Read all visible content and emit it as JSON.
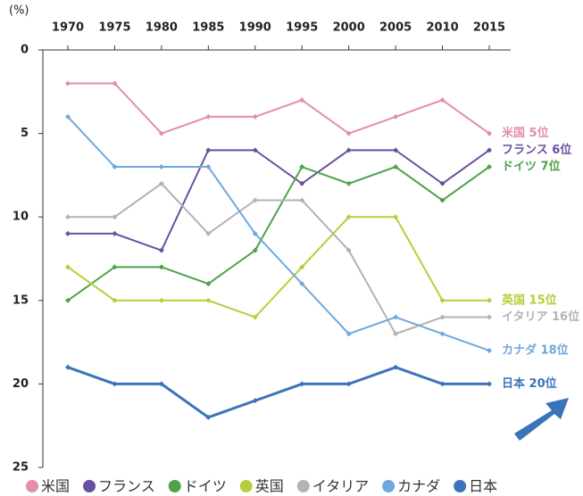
{
  "chart_data": {
    "type": "line",
    "y_label": "(%)",
    "categories": [
      "1970",
      "1975",
      "1980",
      "1985",
      "1990",
      "1995",
      "2000",
      "2005",
      "2010",
      "2015"
    ],
    "ylim": [
      0,
      25
    ],
    "yticks": [
      0,
      5,
      10,
      15,
      20,
      25
    ],
    "y_inverted": true,
    "series": [
      {
        "name": "米国",
        "color": "#e38fa8",
        "values": [
          2,
          2,
          5,
          4,
          4,
          3,
          5,
          4,
          3,
          5
        ],
        "end_label": "米国 5位"
      },
      {
        "name": "フランス",
        "color": "#6b4fa0",
        "values": [
          11,
          11,
          12,
          6,
          6,
          8,
          6,
          6,
          8,
          6
        ],
        "end_label": "フランス 6位"
      },
      {
        "name": "ドイツ",
        "color": "#4ea24a",
        "values": [
          15,
          13,
          13,
          14,
          12,
          7,
          8,
          7,
          9,
          7
        ],
        "end_label": "ドイツ 7位"
      },
      {
        "name": "英国",
        "color": "#b5cf3c",
        "values": [
          13,
          15,
          15,
          15,
          16,
          13,
          10,
          10,
          15,
          15
        ],
        "end_label": "英国 15位"
      },
      {
        "name": "イタリア",
        "color": "#b3b3b3",
        "values": [
          10,
          10,
          8,
          11,
          9,
          9,
          12,
          17,
          16,
          16
        ],
        "end_label": "イタリア 16位"
      },
      {
        "name": "カナダ",
        "color": "#6fa8dc",
        "values": [
          4,
          7,
          7,
          7,
          11,
          14,
          17,
          16,
          17,
          18
        ],
        "end_label": "カナダ 18位"
      },
      {
        "name": "日本",
        "color": "#3b73bb",
        "values": [
          19,
          20,
          20,
          22,
          21,
          20,
          20,
          19,
          20,
          20
        ],
        "end_label": "日本 20位"
      }
    ]
  }
}
